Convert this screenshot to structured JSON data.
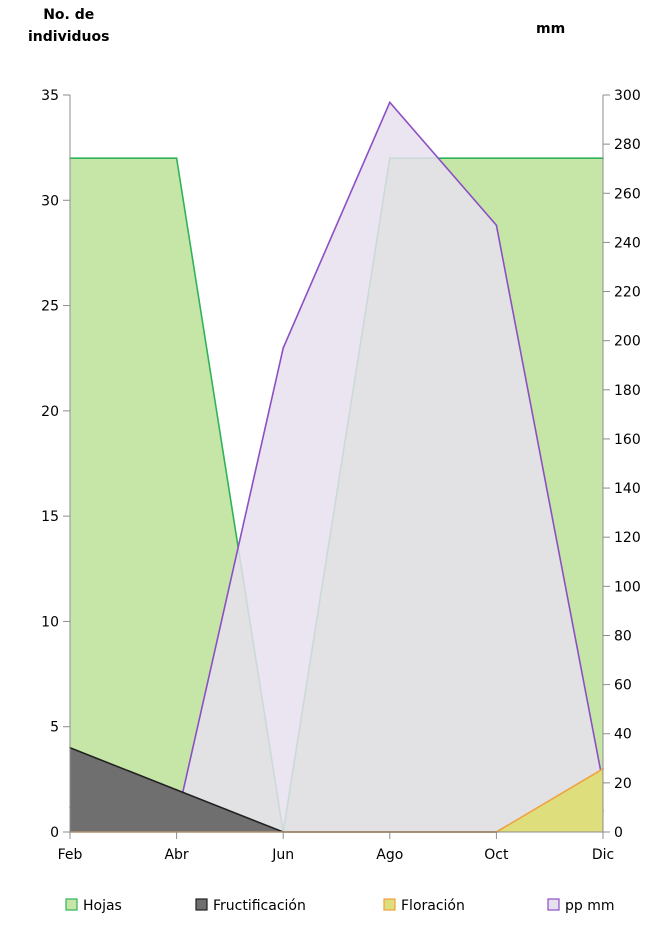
{
  "chart_data": {
    "type": "area",
    "ylabel_left": "No. de individuos",
    "ylabel_left_lines": [
      "No. de",
      "individuos"
    ],
    "ylabel_right": "mm",
    "categories": [
      "Feb",
      "Abr",
      "Jun",
      "Ago",
      "Oct",
      "Dic"
    ],
    "ylim_left": [
      0,
      35
    ],
    "yticks_left": [
      0,
      5,
      10,
      15,
      20,
      25,
      30,
      35
    ],
    "ylim_right": [
      0,
      300
    ],
    "yticks_right": [
      0,
      20,
      40,
      60,
      80,
      100,
      120,
      140,
      160,
      180,
      200,
      220,
      240,
      260,
      280,
      300
    ],
    "grid": false,
    "legend_position": "bottom",
    "series": [
      {
        "name": "Hojas",
        "axis": "left",
        "values": [
          32,
          32,
          0,
          32,
          32,
          32
        ],
        "fill": "#c6e6a7",
        "stroke": "#2fb35a"
      },
      {
        "name": "Fructificación",
        "axis": "left",
        "values": [
          4,
          2,
          0,
          0,
          0,
          1
        ],
        "fill": "#6f6f6f",
        "stroke": "#222222"
      },
      {
        "name": "Floración",
        "axis": "left",
        "values": [
          0,
          0,
          0,
          0,
          0,
          3
        ],
        "fill": "#dede7c",
        "stroke": "#f0a040"
      },
      {
        "name": "pp mm",
        "axis": "right",
        "values": [
          10,
          5,
          197,
          297,
          247,
          20
        ],
        "fill": "#e6e0ef",
        "stroke": "#8d4fc4"
      }
    ]
  }
}
